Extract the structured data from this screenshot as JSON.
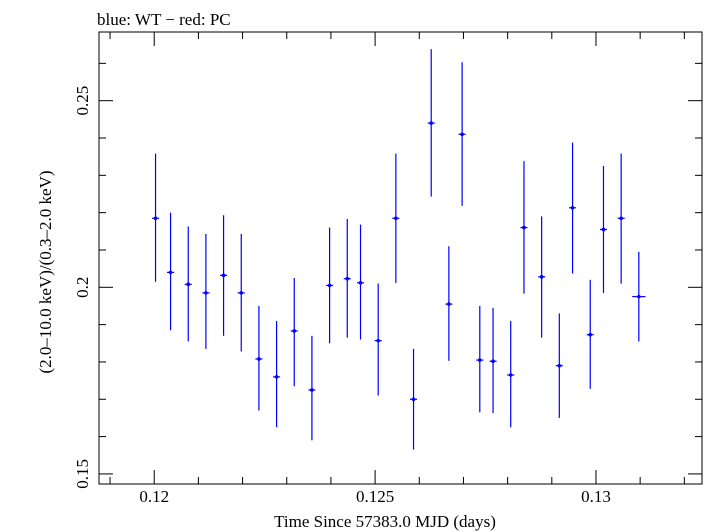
{
  "chart_data": {
    "type": "scatter",
    "title": "blue: WT − red: PC",
    "xlabel": "Time Since 57383.0 MJD (days)",
    "ylabel": "(2.0–10.0 keV)/(0.3–2.0 keV)",
    "xlim": [
      0.11875,
      0.1324
    ],
    "ylim": [
      0.1473,
      0.2684
    ],
    "xticks": [
      {
        "value": 0.12,
        "label": "0.12"
      },
      {
        "value": 0.125,
        "label": "0.125"
      },
      {
        "value": 0.13,
        "label": "0.13"
      }
    ],
    "yticks": [
      {
        "value": 0.15,
        "label": "0.15"
      },
      {
        "value": 0.2,
        "label": "0.2"
      },
      {
        "value": 0.25,
        "label": "0.25"
      }
    ],
    "grid": false,
    "colors": {
      "wt": "#0000ff",
      "pc": "#ff0000",
      "axes": "#000000"
    },
    "series": [
      {
        "color": "#0000ff",
        "points": [
          {
            "x": 0.12003,
            "y": 0.2185,
            "xerr": 8e-05,
            "ylo": 0.2015,
            "yhi": 0.2358
          },
          {
            "x": 0.12037,
            "y": 0.204,
            "xerr": 8e-05,
            "ylo": 0.1885,
            "yhi": 0.22
          },
          {
            "x": 0.12077,
            "y": 0.2008,
            "xerr": 8e-05,
            "ylo": 0.1855,
            "yhi": 0.2163
          },
          {
            "x": 0.12117,
            "y": 0.1985,
            "xerr": 8e-05,
            "ylo": 0.1835,
            "yhi": 0.2143
          },
          {
            "x": 0.12157,
            "y": 0.2032,
            "xerr": 8e-05,
            "ylo": 0.187,
            "yhi": 0.2193
          },
          {
            "x": 0.12197,
            "y": 0.1985,
            "xerr": 8e-05,
            "ylo": 0.1828,
            "yhi": 0.2143
          },
          {
            "x": 0.12237,
            "y": 0.1808,
            "xerr": 8e-05,
            "ylo": 0.167,
            "yhi": 0.195
          },
          {
            "x": 0.12277,
            "y": 0.176,
            "xerr": 8e-05,
            "ylo": 0.1625,
            "yhi": 0.191
          },
          {
            "x": 0.12317,
            "y": 0.1883,
            "xerr": 8e-05,
            "ylo": 0.1735,
            "yhi": 0.2025
          },
          {
            "x": 0.12357,
            "y": 0.1725,
            "xerr": 8e-05,
            "ylo": 0.159,
            "yhi": 0.187
          },
          {
            "x": 0.12397,
            "y": 0.2005,
            "xerr": 8e-05,
            "ylo": 0.185,
            "yhi": 0.216
          },
          {
            "x": 0.12437,
            "y": 0.2023,
            "xerr": 8e-05,
            "ylo": 0.1865,
            "yhi": 0.2183
          },
          {
            "x": 0.12467,
            "y": 0.2012,
            "xerr": 8e-05,
            "ylo": 0.186,
            "yhi": 0.2168
          },
          {
            "x": 0.12507,
            "y": 0.1857,
            "xerr": 8e-05,
            "ylo": 0.171,
            "yhi": 0.201
          },
          {
            "x": 0.12547,
            "y": 0.2185,
            "xerr": 8e-05,
            "ylo": 0.2012,
            "yhi": 0.2358
          },
          {
            "x": 0.12587,
            "y": 0.17,
            "xerr": 8e-05,
            "ylo": 0.1565,
            "yhi": 0.1835
          },
          {
            "x": 0.12627,
            "y": 0.244,
            "xerr": 8e-05,
            "ylo": 0.2243,
            "yhi": 0.2638
          },
          {
            "x": 0.12667,
            "y": 0.1955,
            "xerr": 8e-05,
            "ylo": 0.1803,
            "yhi": 0.211
          },
          {
            "x": 0.12697,
            "y": 0.241,
            "xerr": 8e-05,
            "ylo": 0.2218,
            "yhi": 0.2603
          },
          {
            "x": 0.12737,
            "y": 0.1805,
            "xerr": 8e-05,
            "ylo": 0.1665,
            "yhi": 0.195
          },
          {
            "x": 0.12767,
            "y": 0.1802,
            "xerr": 8e-05,
            "ylo": 0.1663,
            "yhi": 0.1945
          },
          {
            "x": 0.12807,
            "y": 0.1765,
            "xerr": 8e-05,
            "ylo": 0.1625,
            "yhi": 0.191
          },
          {
            "x": 0.12837,
            "y": 0.216,
            "xerr": 8e-05,
            "ylo": 0.1983,
            "yhi": 0.2338
          },
          {
            "x": 0.12877,
            "y": 0.2028,
            "xerr": 8e-05,
            "ylo": 0.1865,
            "yhi": 0.219
          },
          {
            "x": 0.12917,
            "y": 0.179,
            "xerr": 8e-05,
            "ylo": 0.165,
            "yhi": 0.193
          },
          {
            "x": 0.12947,
            "y": 0.2213,
            "xerr": 8e-05,
            "ylo": 0.2037,
            "yhi": 0.2388
          },
          {
            "x": 0.12987,
            "y": 0.1873,
            "xerr": 8e-05,
            "ylo": 0.1728,
            "yhi": 0.202
          },
          {
            "x": 0.13017,
            "y": 0.2155,
            "xerr": 8e-05,
            "ylo": 0.1985,
            "yhi": 0.2325
          },
          {
            "x": 0.13057,
            "y": 0.2185,
            "xerr": 8e-05,
            "ylo": 0.201,
            "yhi": 0.2358
          },
          {
            "x": 0.13097,
            "y": 0.1975,
            "xerr": 0.00015,
            "ylo": 0.1855,
            "yhi": 0.2095
          }
        ]
      }
    ]
  }
}
